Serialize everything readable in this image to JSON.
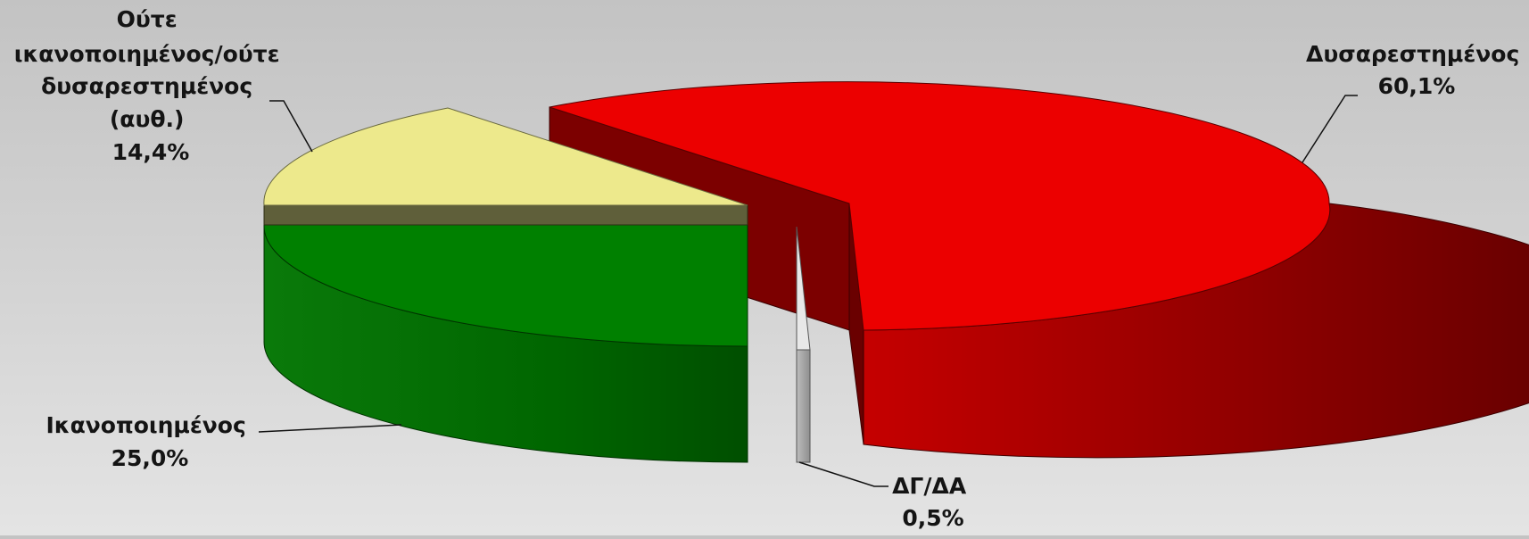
{
  "chart_data": {
    "type": "pie",
    "style": "3d-exploded",
    "title": "",
    "legend": "none",
    "slices": [
      {
        "name": "Δυσαρεστημένος",
        "value": 60.1,
        "value_label": "60,1%",
        "label_lines": [
          "Δυσαρεστημένος",
          "60,1%"
        ],
        "color": "#e80000",
        "side_color": "#7a0000"
      },
      {
        "name": "ΔΓ/ΔΑ",
        "value": 0.5,
        "value_label": "0,5%",
        "label_lines": [
          "ΔΓ/ΔΑ",
          "0,5%"
        ],
        "color": "#e2e2e2",
        "side_color": "#a6a6a6"
      },
      {
        "name": "Ικανοποιημένος",
        "value": 25.0,
        "value_label": "25,0%",
        "label_lines": [
          "Ικανοποιημένος",
          "25,0%"
        ],
        "color": "#008000",
        "side_color": "#005500"
      },
      {
        "name": "Ούτε ικανοποιημένος/ούτε δυσαρεστημένος (αυθ.)",
        "value": 14.4,
        "value_label": "14,4%",
        "label_lines": [
          "Ούτε",
          "ικανοποιημένος/ούτε",
          "δυσαρεστημένος",
          "(αυθ.)",
          "14,4%"
        ],
        "color": "#ede98c",
        "side_color": "#5f5f3a"
      }
    ]
  }
}
